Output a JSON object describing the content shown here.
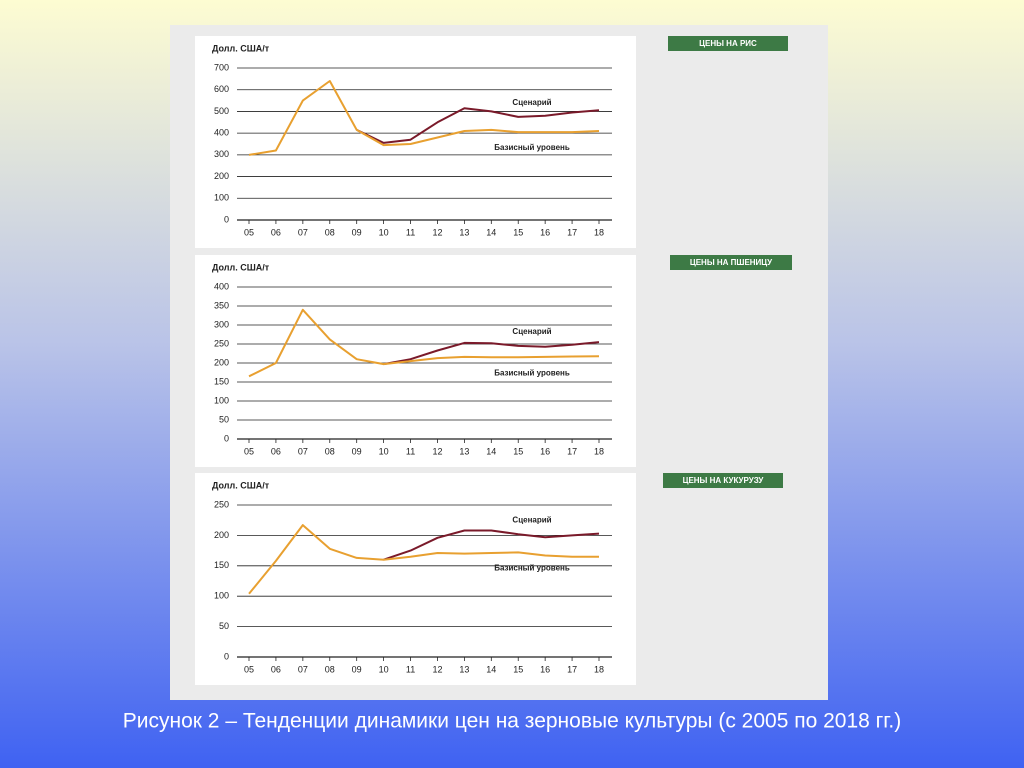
{
  "caption": "Рисунок 2 – Тенденции динамики цен на зерновые культуры (с 2005 по 2018 гг.)",
  "chart_data": [
    {
      "type": "line",
      "title": "ЦЕНЫ НА РИС",
      "y_label": "Долл. США/т",
      "categories": [
        "05",
        "06",
        "07",
        "08",
        "09",
        "10",
        "11",
        "12",
        "13",
        "14",
        "15",
        "16",
        "17",
        "18"
      ],
      "series": [
        {
          "name": "Сценарий",
          "color": "#7a1a2a",
          "values": [
            null,
            null,
            null,
            null,
            415,
            355,
            370,
            450,
            515,
            500,
            475,
            480,
            495,
            505
          ]
        },
        {
          "name": "Базисный уровень",
          "color": "#e8a030",
          "values": [
            300,
            320,
            550,
            640,
            415,
            345,
            350,
            380,
            410,
            415,
            405,
            405,
            405,
            410
          ]
        }
      ],
      "ylim": [
        0,
        700
      ],
      "yticks": [
        0,
        100,
        200,
        300,
        400,
        500,
        600,
        700
      ],
      "grid": true
    },
    {
      "type": "line",
      "title": "ЦЕНЫ НА ПШЕНИЦУ",
      "y_label": "Долл. США/т",
      "categories": [
        "05",
        "06",
        "07",
        "08",
        "09",
        "10",
        "11",
        "12",
        "13",
        "14",
        "15",
        "16",
        "17",
        "18"
      ],
      "series": [
        {
          "name": "Сценарий",
          "color": "#7a1a2a",
          "values": [
            null,
            null,
            null,
            null,
            null,
            197,
            210,
            233,
            253,
            252,
            245,
            243,
            248,
            255
          ]
        },
        {
          "name": "Базисный уровень",
          "color": "#e8a030",
          "values": [
            165,
            200,
            340,
            262,
            210,
            197,
            205,
            213,
            216,
            215,
            215,
            216,
            217,
            218
          ]
        }
      ],
      "ylim": [
        0,
        400
      ],
      "yticks": [
        0,
        50,
        100,
        150,
        200,
        250,
        300,
        350,
        400
      ],
      "grid": true
    },
    {
      "type": "line",
      "title": "ЦЕНЫ НА КУКУРУЗУ",
      "y_label": "Долл. США/т",
      "categories": [
        "05",
        "06",
        "07",
        "08",
        "09",
        "10",
        "11",
        "12",
        "13",
        "14",
        "15",
        "16",
        "17",
        "18"
      ],
      "series": [
        {
          "name": "Сценарий",
          "color": "#7a1a2a",
          "values": [
            null,
            null,
            null,
            null,
            null,
            160,
            175,
            196,
            208,
            208,
            202,
            197,
            200,
            203
          ]
        },
        {
          "name": "Базисный уровень",
          "color": "#e8a030",
          "values": [
            104,
            158,
            217,
            178,
            163,
            160,
            165,
            171,
            170,
            171,
            172,
            167,
            165,
            165
          ]
        }
      ],
      "ylim": [
        0,
        250
      ],
      "yticks": [
        0,
        50,
        100,
        150,
        200,
        250
      ],
      "grid": true
    }
  ]
}
